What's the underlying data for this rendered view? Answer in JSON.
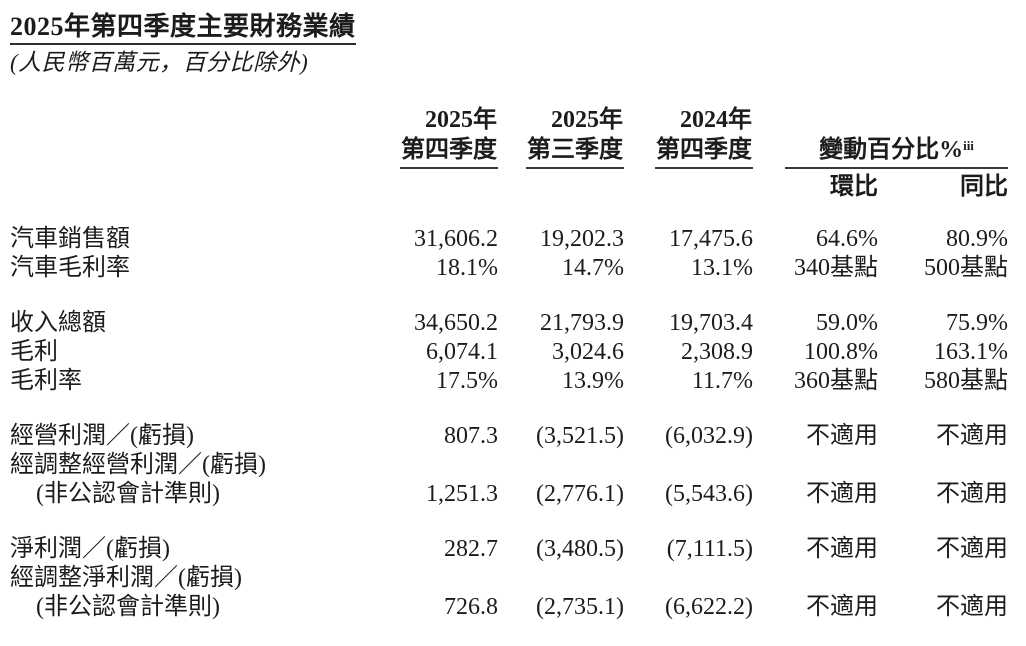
{
  "document": {
    "title": "2025年第四季度主要財務業績",
    "subtitle": "(人民幣百萬元，百分比除外)"
  },
  "table": {
    "quarter_columns": [
      {
        "year": "2025年",
        "quarter": "第四季度"
      },
      {
        "year": "2025年",
        "quarter": "第三季度"
      },
      {
        "year": "2024年",
        "quarter": "第四季度"
      }
    ],
    "change_header": {
      "label": "變動百分比%",
      "superscript": "iii",
      "qoq": "環比",
      "yoy": "同比"
    },
    "groups": [
      {
        "rows": [
          {
            "label": "汽車銷售額",
            "indent": false,
            "values": [
              "31,606.2",
              "19,202.3",
              "17,475.6",
              "64.6%",
              "80.9%"
            ]
          },
          {
            "label": "汽車毛利率",
            "indent": false,
            "values": [
              "18.1%",
              "14.7%",
              "13.1%",
              "340基點",
              "500基點"
            ]
          }
        ]
      },
      {
        "rows": [
          {
            "label": "收入總額",
            "indent": false,
            "values": [
              "34,650.2",
              "21,793.9",
              "19,703.4",
              "59.0%",
              "75.9%"
            ]
          },
          {
            "label": "毛利",
            "indent": false,
            "values": [
              "6,074.1",
              "3,024.6",
              "2,308.9",
              "100.8%",
              "163.1%"
            ]
          },
          {
            "label": "毛利率",
            "indent": false,
            "values": [
              "17.5%",
              "13.9%",
              "11.7%",
              "360基點",
              "580基點"
            ]
          }
        ]
      },
      {
        "rows": [
          {
            "label": "經營利潤／(虧損)",
            "indent": false,
            "values": [
              "807.3",
              "(3,521.5)",
              "(6,032.9)",
              "不適用",
              "不適用"
            ]
          },
          {
            "label": "經調整經營利潤／(虧損)",
            "indent": false,
            "values": [
              "",
              "",
              "",
              "",
              ""
            ]
          },
          {
            "label": "(非公認會計準則)",
            "indent": true,
            "values": [
              "1,251.3",
              "(2,776.1)",
              "(5,543.6)",
              "不適用",
              "不適用"
            ]
          }
        ]
      },
      {
        "rows": [
          {
            "label": "淨利潤／(虧損)",
            "indent": false,
            "values": [
              "282.7",
              "(3,480.5)",
              "(7,111.5)",
              "不適用",
              "不適用"
            ]
          },
          {
            "label": "經調整淨利潤／(虧損)",
            "indent": false,
            "values": [
              "",
              "",
              "",
              "",
              ""
            ]
          },
          {
            "label": "(非公認會計準則)",
            "indent": true,
            "values": [
              "726.8",
              "(2,735.1)",
              "(6,622.2)",
              "不適用",
              "不適用"
            ]
          }
        ]
      }
    ]
  }
}
